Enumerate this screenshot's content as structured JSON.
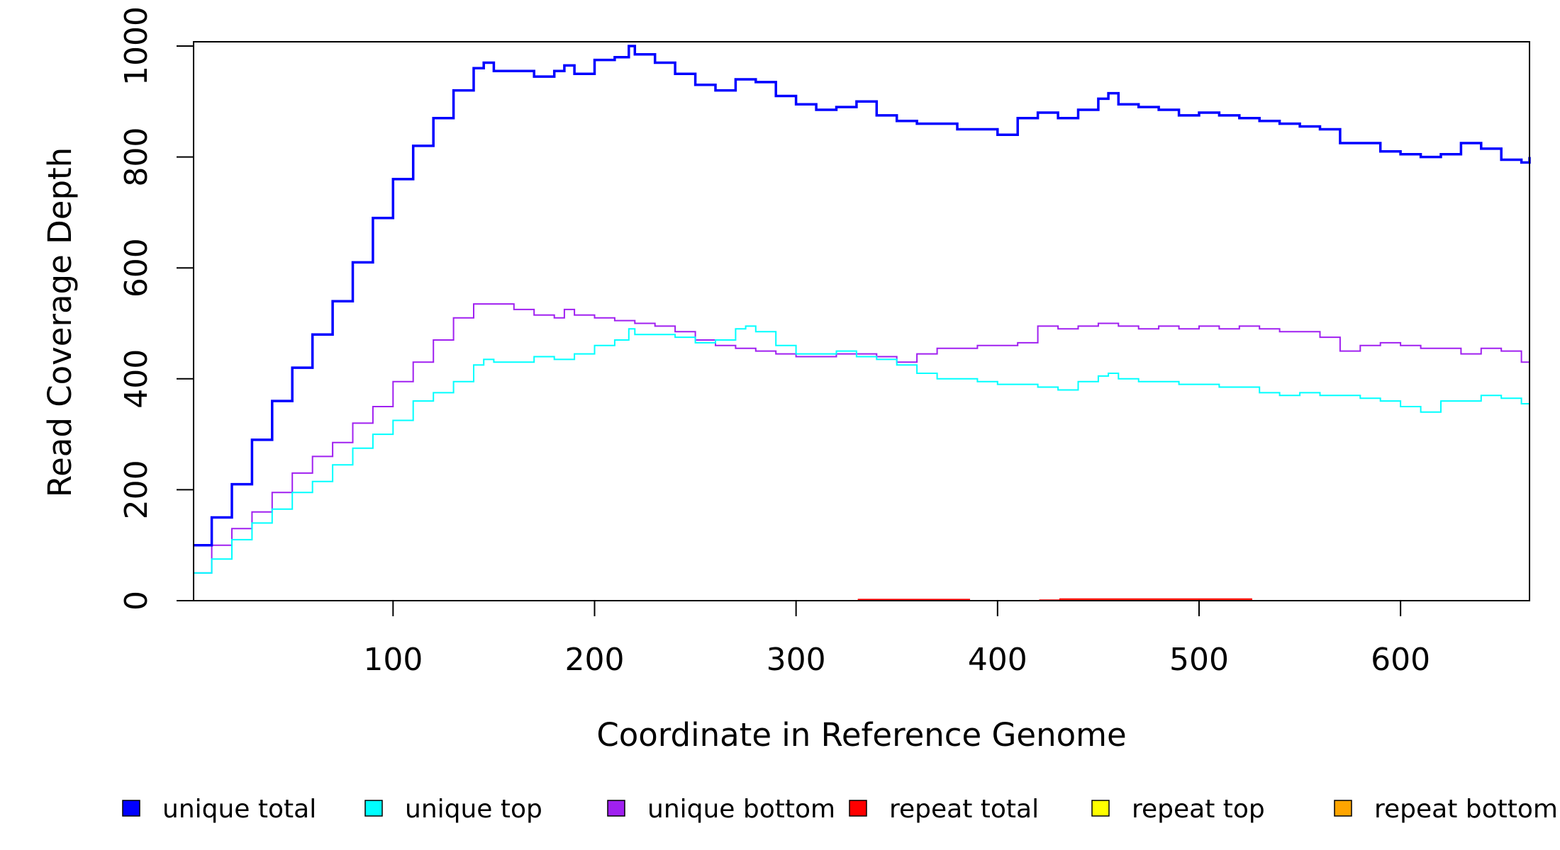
{
  "chart_data": {
    "type": "line",
    "title": "",
    "xlabel": "Coordinate in Reference Genome",
    "ylabel": "Read Coverage Depth",
    "xlim": [
      1,
      664
    ],
    "ylim": [
      0,
      1000
    ],
    "x_ticks": [
      100,
      200,
      300,
      400,
      500,
      600
    ],
    "y_ticks": [
      0,
      200,
      400,
      600,
      800,
      1000
    ],
    "x_tick_labels": [
      "100",
      "200",
      "300",
      "400",
      "500",
      "600"
    ],
    "y_tick_labels": [
      "0",
      "200",
      "400",
      "600",
      "800",
      "1000"
    ],
    "grid": false,
    "legend_position": "bottom",
    "legend": [
      "unique total",
      "unique top",
      "unique bottom",
      "repeat total",
      "repeat top",
      "repeat bottom"
    ],
    "series": [
      {
        "name": "unique total",
        "color": "#0000ff",
        "x": [
          1,
          10,
          20,
          30,
          40,
          50,
          60,
          70,
          80,
          90,
          100,
          110,
          120,
          130,
          140,
          145,
          150,
          160,
          170,
          180,
          185,
          190,
          200,
          210,
          217,
          220,
          230,
          240,
          250,
          260,
          270,
          280,
          290,
          300,
          310,
          320,
          330,
          340,
          350,
          360,
          370,
          380,
          390,
          400,
          410,
          420,
          430,
          440,
          450,
          455,
          460,
          470,
          480,
          490,
          500,
          510,
          520,
          530,
          540,
          550,
          560,
          570,
          580,
          590,
          600,
          610,
          620,
          630,
          640,
          650,
          660,
          664
        ],
        "values": [
          100,
          150,
          210,
          290,
          360,
          420,
          480,
          540,
          610,
          690,
          760,
          820,
          870,
          920,
          960,
          970,
          955,
          955,
          945,
          955,
          965,
          950,
          975,
          980,
          1000,
          985,
          970,
          950,
          930,
          920,
          940,
          935,
          910,
          895,
          885,
          890,
          900,
          875,
          865,
          860,
          860,
          850,
          850,
          840,
          870,
          880,
          870,
          885,
          905,
          915,
          895,
          890,
          885,
          875,
          880,
          875,
          870,
          865,
          860,
          855,
          850,
          825,
          825,
          810,
          805,
          800,
          805,
          825,
          815,
          795,
          790,
          800
        ]
      },
      {
        "name": "unique top",
        "color": "#00ffff",
        "x": [
          1,
          10,
          20,
          30,
          40,
          50,
          60,
          70,
          80,
          90,
          100,
          110,
          120,
          130,
          140,
          145,
          150,
          160,
          170,
          180,
          190,
          200,
          210,
          217,
          220,
          230,
          240,
          250,
          260,
          270,
          275,
          280,
          290,
          300,
          310,
          320,
          330,
          340,
          350,
          360,
          370,
          380,
          390,
          400,
          410,
          420,
          430,
          440,
          450,
          455,
          460,
          470,
          480,
          490,
          500,
          510,
          520,
          530,
          540,
          550,
          560,
          570,
          580,
          590,
          600,
          610,
          620,
          630,
          640,
          650,
          660,
          664
        ],
        "values": [
          50,
          75,
          110,
          140,
          165,
          195,
          215,
          245,
          275,
          300,
          325,
          360,
          375,
          395,
          425,
          435,
          430,
          430,
          440,
          435,
          445,
          460,
          470,
          490,
          480,
          480,
          475,
          465,
          470,
          490,
          495,
          485,
          460,
          445,
          445,
          450,
          440,
          435,
          425,
          410,
          400,
          400,
          395,
          390,
          390,
          385,
          380,
          395,
          405,
          410,
          400,
          395,
          395,
          390,
          390,
          385,
          385,
          375,
          370,
          375,
          370,
          370,
          365,
          360,
          350,
          340,
          360,
          360,
          370,
          365,
          355,
          380
        ]
      },
      {
        "name": "unique bottom",
        "color": "#a020f0",
        "x": [
          1,
          10,
          20,
          30,
          40,
          50,
          60,
          70,
          80,
          90,
          100,
          110,
          120,
          130,
          140,
          150,
          160,
          170,
          180,
          185,
          190,
          200,
          210,
          220,
          230,
          240,
          250,
          260,
          270,
          280,
          290,
          300,
          310,
          320,
          330,
          340,
          350,
          360,
          370,
          380,
          390,
          400,
          410,
          420,
          430,
          440,
          450,
          460,
          470,
          480,
          490,
          500,
          510,
          520,
          530,
          540,
          550,
          560,
          570,
          580,
          590,
          600,
          610,
          620,
          630,
          640,
          650,
          660,
          664
        ],
        "values": [
          50,
          100,
          130,
          160,
          195,
          230,
          260,
          285,
          320,
          350,
          395,
          430,
          470,
          510,
          535,
          535,
          525,
          515,
          510,
          525,
          515,
          510,
          505,
          500,
          495,
          485,
          470,
          460,
          455,
          450,
          445,
          440,
          440,
          445,
          445,
          440,
          430,
          445,
          455,
          455,
          460,
          460,
          465,
          495,
          490,
          495,
          500,
          495,
          490,
          495,
          490,
          495,
          490,
          495,
          490,
          485,
          485,
          475,
          450,
          460,
          465,
          460,
          455,
          455,
          445,
          455,
          450,
          430,
          420
        ]
      },
      {
        "name": "repeat total",
        "color": "#ff0000",
        "x": [
          1,
          330,
          331,
          385,
          386,
          420,
          421,
          430,
          431,
          525,
          526,
          664
        ],
        "values": [
          0,
          0,
          2,
          2,
          0,
          0,
          1,
          1,
          3,
          3,
          0,
          0
        ]
      },
      {
        "name": "repeat top",
        "color": "#ffff00",
        "x": [
          1,
          664
        ],
        "values": [
          0,
          0
        ]
      },
      {
        "name": "repeat bottom",
        "color": "#ffa500",
        "x": [
          1,
          330,
          331,
          385,
          386,
          430,
          431,
          525,
          526,
          664
        ],
        "values": [
          0,
          0,
          1,
          1,
          0,
          0,
          2,
          2,
          0,
          0
        ]
      }
    ]
  }
}
